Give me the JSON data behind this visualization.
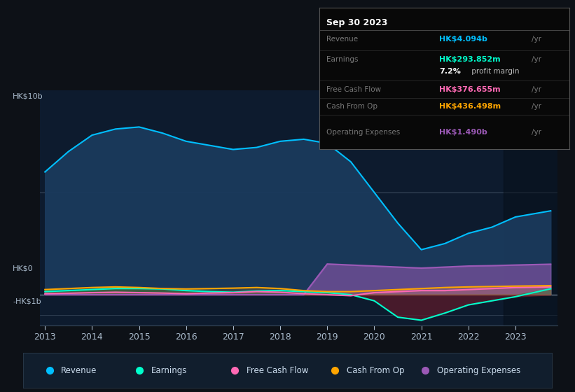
{
  "bg_color": "#0d1117",
  "chart_bg": "#0d1b2e",
  "years": [
    2013,
    2013.5,
    2014,
    2014.5,
    2015,
    2015.5,
    2016,
    2016.5,
    2017,
    2017.5,
    2018,
    2018.5,
    2019,
    2019.5,
    2020,
    2020.5,
    2021,
    2021.5,
    2022,
    2022.5,
    2023,
    2023.75
  ],
  "revenue": [
    6.0,
    7.0,
    7.8,
    8.1,
    8.2,
    7.9,
    7.5,
    7.3,
    7.1,
    7.2,
    7.5,
    7.6,
    7.4,
    6.5,
    5.0,
    3.5,
    2.2,
    2.5,
    3.0,
    3.3,
    3.8,
    4.1
  ],
  "earnings": [
    0.15,
    0.2,
    0.25,
    0.3,
    0.3,
    0.28,
    0.2,
    0.15,
    0.12,
    0.18,
    0.2,
    0.15,
    0.1,
    0.0,
    -0.3,
    -1.1,
    -1.25,
    -0.9,
    -0.5,
    -0.3,
    -0.1,
    0.29
  ],
  "free_cash_flow": [
    0.05,
    0.07,
    0.1,
    0.12,
    0.1,
    0.08,
    0.05,
    0.08,
    0.1,
    0.15,
    0.12,
    0.05,
    0.0,
    -0.05,
    0.1,
    0.15,
    0.2,
    0.2,
    0.25,
    0.3,
    0.35,
    0.38
  ],
  "cash_from_op": [
    0.25,
    0.3,
    0.35,
    0.38,
    0.35,
    0.3,
    0.28,
    0.3,
    0.32,
    0.35,
    0.3,
    0.2,
    0.15,
    0.15,
    0.2,
    0.25,
    0.3,
    0.35,
    0.38,
    0.4,
    0.42,
    0.44
  ],
  "operating_expenses": [
    0.0,
    0.0,
    0.0,
    0.0,
    0.0,
    0.0,
    0.0,
    0.0,
    0.0,
    0.0,
    0.0,
    0.0,
    1.5,
    1.45,
    1.4,
    1.35,
    1.3,
    1.35,
    1.4,
    1.42,
    1.45,
    1.49
  ],
  "revenue_color": "#00bfff",
  "earnings_color": "#00ffcc",
  "free_cash_flow_color": "#ff69b4",
  "cash_from_op_color": "#ffa500",
  "operating_expenses_color": "#9b59b6",
  "revenue_fill": "#1a3a5c",
  "earnings_fill_pos": "#1a5c4a",
  "earnings_fill_neg": "#5c1a2a",
  "ylim_min": -1.5,
  "ylim_max": 10.0,
  "ylabel_top": "HK$10b",
  "ylabel_zero": "HK$0",
  "ylabel_neg": "-HK$1b",
  "xticks": [
    2013,
    2014,
    2015,
    2016,
    2017,
    2018,
    2019,
    2020,
    2021,
    2022,
    2023
  ],
  "info_box": {
    "date": "Sep 30 2023",
    "revenue_label": "Revenue",
    "revenue_value": "HK$4.094b",
    "revenue_color": "#00bfff",
    "earnings_label": "Earnings",
    "earnings_value": "HK$293.852m",
    "earnings_color": "#00ffcc",
    "margin_text": "7.2%",
    "margin_suffix": " profit margin",
    "fcf_label": "Free Cash Flow",
    "fcf_value": "HK$376.655m",
    "fcf_color": "#ff69b4",
    "cfop_label": "Cash From Op",
    "cfop_value": "HK$436.498m",
    "cfop_color": "#ffa500",
    "opex_label": "Operating Expenses",
    "opex_value": "HK$1.490b",
    "opex_color": "#9b59b6"
  },
  "legend_items": [
    {
      "label": "Revenue",
      "color": "#00bfff"
    },
    {
      "label": "Earnings",
      "color": "#00ffcc"
    },
    {
      "label": "Free Cash Flow",
      "color": "#ff69b4"
    },
    {
      "label": "Cash From Op",
      "color": "#ffa500"
    },
    {
      "label": "Operating Expenses",
      "color": "#9b59b6"
    }
  ]
}
